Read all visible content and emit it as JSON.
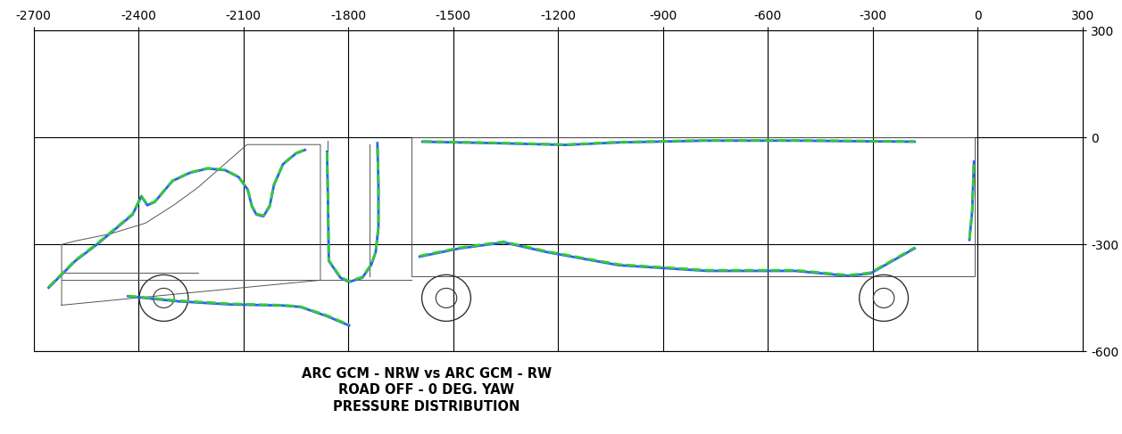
{
  "chart_data": {
    "type": "line",
    "title": "ARC GCM - NRW vs ARC GCM - RW\nROAD OFF - 0 DEG. YAW\nPRESSURE DISTRIBUTION",
    "xlim": [
      -2700,
      300
    ],
    "ylim": [
      -600,
      300
    ],
    "xticks": [
      -2700,
      -2400,
      -2100,
      -1800,
      -1500,
      -1200,
      -900,
      -600,
      -300,
      0,
      300
    ],
    "yticks": [
      -600,
      -300,
      0,
      300
    ],
    "grid": true,
    "series": [
      {
        "color": "#2f5cff",
        "line_style": "solid",
        "x": [
          -2657,
          -2581,
          -2518,
          -2417,
          -2392,
          -2375,
          -2354,
          -2303,
          -2253,
          -2202,
          -2152,
          -2114,
          -2088,
          -2076,
          -2063,
          -2043,
          -2025,
          -2013,
          -1987,
          -1950,
          -1924,
          null,
          -1861,
          -1858,
          -1856,
          -1823,
          -1798,
          -1760,
          -1735,
          -1722,
          -1714,
          -1714,
          -1717,
          null,
          -2430,
          -2291,
          -2139,
          -1987,
          -1937,
          -1861,
          -1798,
          null,
          -1588,
          -1381,
          -1179,
          -1027,
          -774,
          -522,
          -181,
          null,
          -1596,
          -1482,
          -1356,
          -1229,
          -1027,
          -774,
          -522,
          -370,
          -307,
          -244,
          -181,
          null,
          -24,
          -16,
          -11
        ],
        "values": [
          -421,
          -346,
          -299,
          -216,
          -165,
          -190,
          -181,
          -122,
          -99,
          -87,
          -92,
          -111,
          -146,
          -193,
          -216,
          -221,
          -193,
          -134,
          -75,
          -45,
          -35,
          null,
          -40,
          -200,
          -346,
          -393,
          -405,
          -393,
          -358,
          -322,
          -252,
          -134,
          -16,
          null,
          -445,
          -459,
          -468,
          -471,
          -475,
          -501,
          -527,
          null,
          -12,
          -16,
          -21,
          -14,
          -9,
          -9,
          -12,
          null,
          -334,
          -311,
          -294,
          -322,
          -358,
          -374,
          -374,
          -388,
          -381,
          -346,
          -311,
          null,
          -287,
          -205,
          -68
        ]
      },
      {
        "color": "#33cc33",
        "line_style": "dashed",
        "x": [
          -2657,
          -2581,
          -2518,
          -2417,
          -2392,
          -2375,
          -2354,
          -2303,
          -2253,
          -2202,
          -2152,
          -2114,
          -2088,
          -2076,
          -2063,
          -2043,
          -2025,
          -2013,
          -1987,
          -1950,
          -1924,
          null,
          -1861,
          -1858,
          -1856,
          -1823,
          -1798,
          -1760,
          -1735,
          -1722,
          -1714,
          -1714,
          -1717,
          null,
          -2430,
          -2291,
          -2139,
          -1987,
          -1937,
          -1861,
          -1798,
          null,
          -1588,
          -1381,
          -1179,
          -1027,
          -774,
          -522,
          -181,
          null,
          -1596,
          -1482,
          -1356,
          -1229,
          -1027,
          -774,
          -522,
          -370,
          -307,
          -244,
          -181,
          null,
          -24,
          -16,
          -11
        ],
        "values": [
          -419,
          -344,
          -297,
          -214,
          -164,
          -188,
          -180,
          -121,
          -98,
          -86,
          -91,
          -110,
          -145,
          -191,
          -214,
          -219,
          -191,
          -132,
          -74,
          -44,
          -34,
          null,
          -41,
          -201,
          -344,
          -391,
          -403,
          -391,
          -356,
          -320,
          -250,
          -133,
          -17,
          null,
          -444,
          -457,
          -466,
          -470,
          -474,
          -499,
          -525,
          null,
          -11,
          -15,
          -20,
          -13,
          -8,
          -8,
          -11,
          null,
          -332,
          -309,
          -292,
          -320,
          -356,
          -372,
          -372,
          -386,
          -379,
          -344,
          -309,
          null,
          -285,
          -203,
          -66
        ]
      }
    ]
  }
}
